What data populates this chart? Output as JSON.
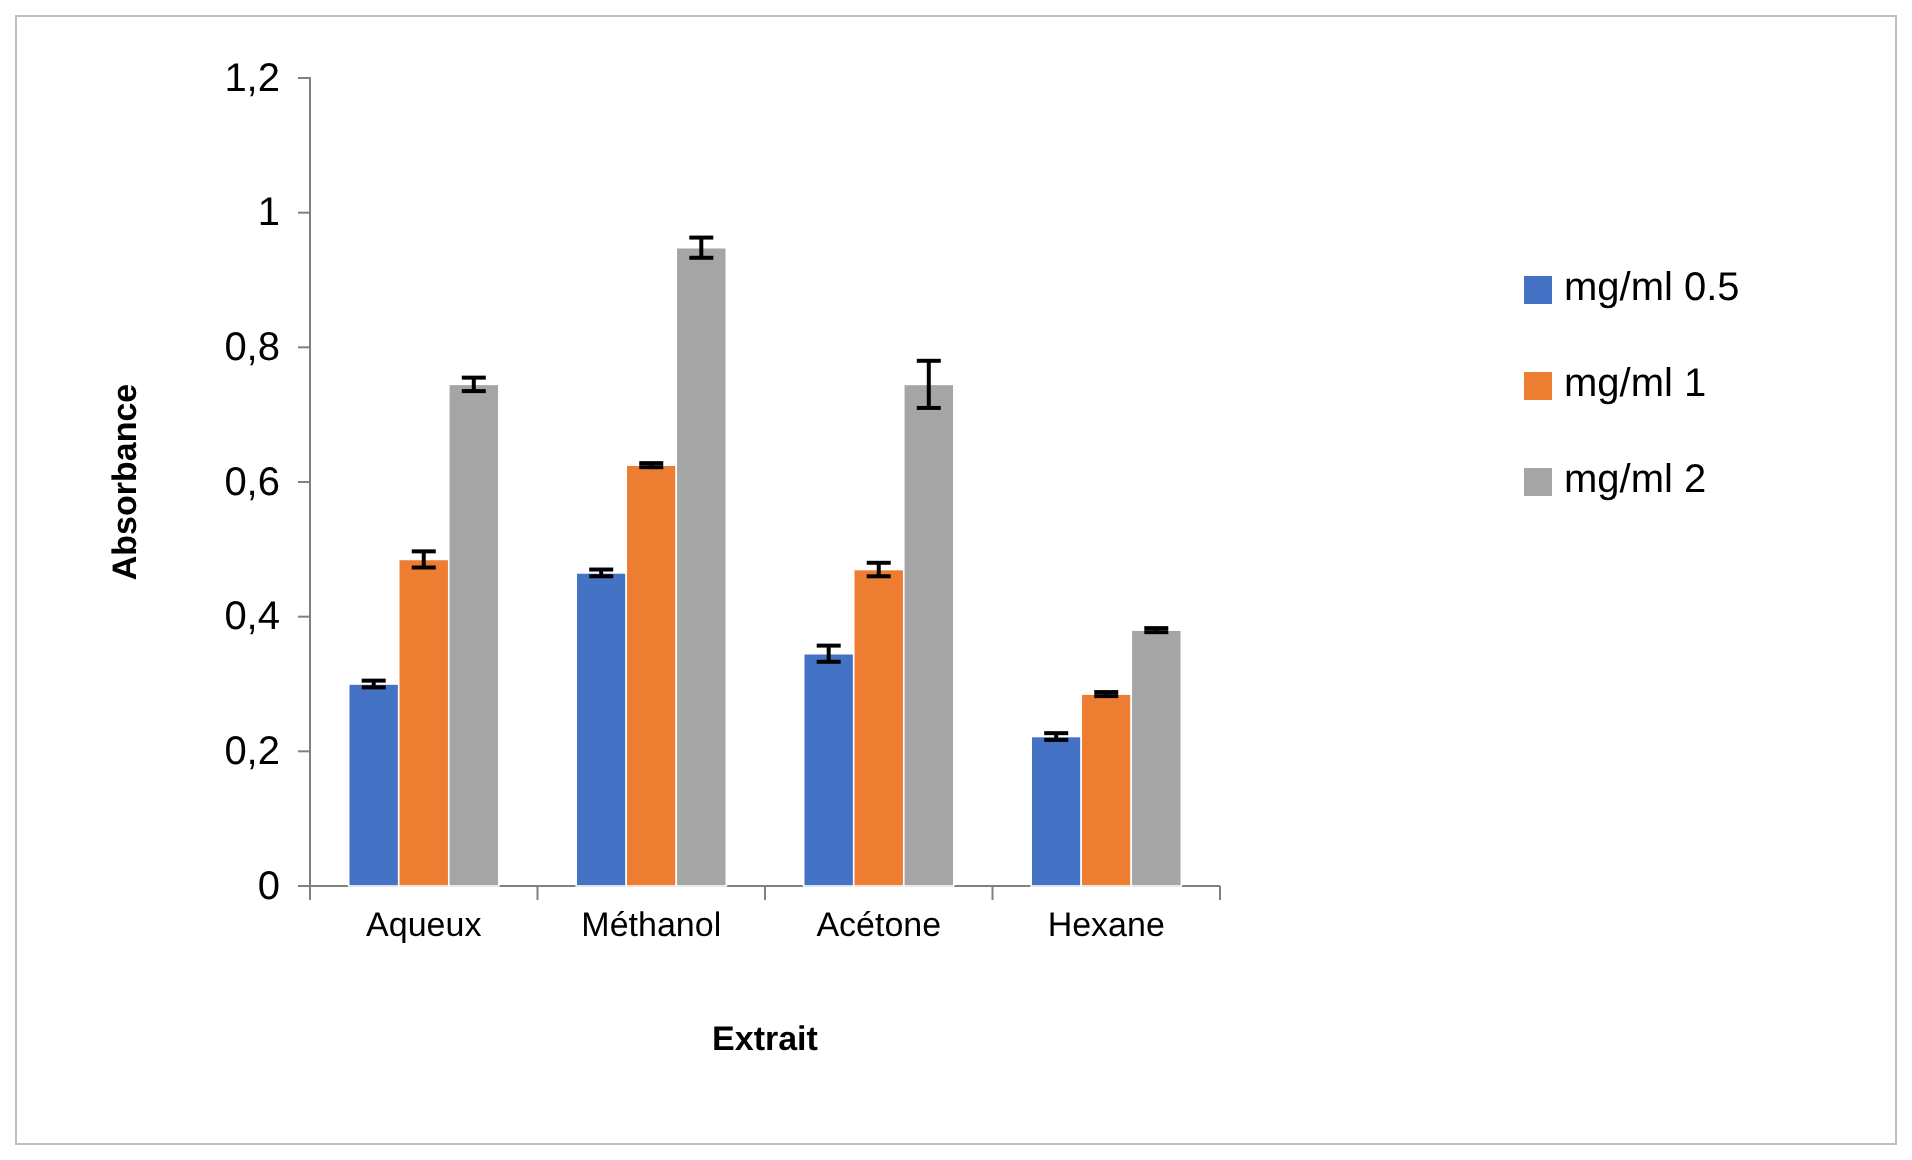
{
  "chart_data": {
    "type": "bar",
    "xlabel": "Extrait",
    "ylabel": "Absorbance",
    "categories": [
      "Aqueux",
      "Méthanol",
      "Acétone",
      "Hexane"
    ],
    "series": [
      {
        "name": "mg/ml 0.5",
        "color": "#4472c4",
        "values": [
          0.3,
          0.465,
          0.345,
          0.222
        ],
        "errors": [
          0.005,
          0.005,
          0.012,
          0.005
        ]
      },
      {
        "name": "mg/ml 1",
        "color": "#ed7d31",
        "values": [
          0.485,
          0.625,
          0.47,
          0.285
        ],
        "errors": [
          0.012,
          0.003,
          0.01,
          0.003
        ]
      },
      {
        "name": "mg/ml 2",
        "color": "#a5a5a5",
        "values": [
          0.745,
          0.948,
          0.745,
          0.38
        ],
        "errors": [
          0.01,
          0.015,
          0.035,
          0.003
        ]
      }
    ],
    "ylim": [
      0,
      1.2
    ],
    "yticks": [
      {
        "value": 0,
        "label": "0"
      },
      {
        "value": 0.2,
        "label": "0,2"
      },
      {
        "value": 0.4,
        "label": "0,4"
      },
      {
        "value": 0.6,
        "label": "0,6"
      },
      {
        "value": 0.8,
        "label": "0,8"
      },
      {
        "value": 1,
        "label": "1"
      },
      {
        "value": 1.2,
        "label": "1,2"
      }
    ],
    "legend": "right"
  }
}
